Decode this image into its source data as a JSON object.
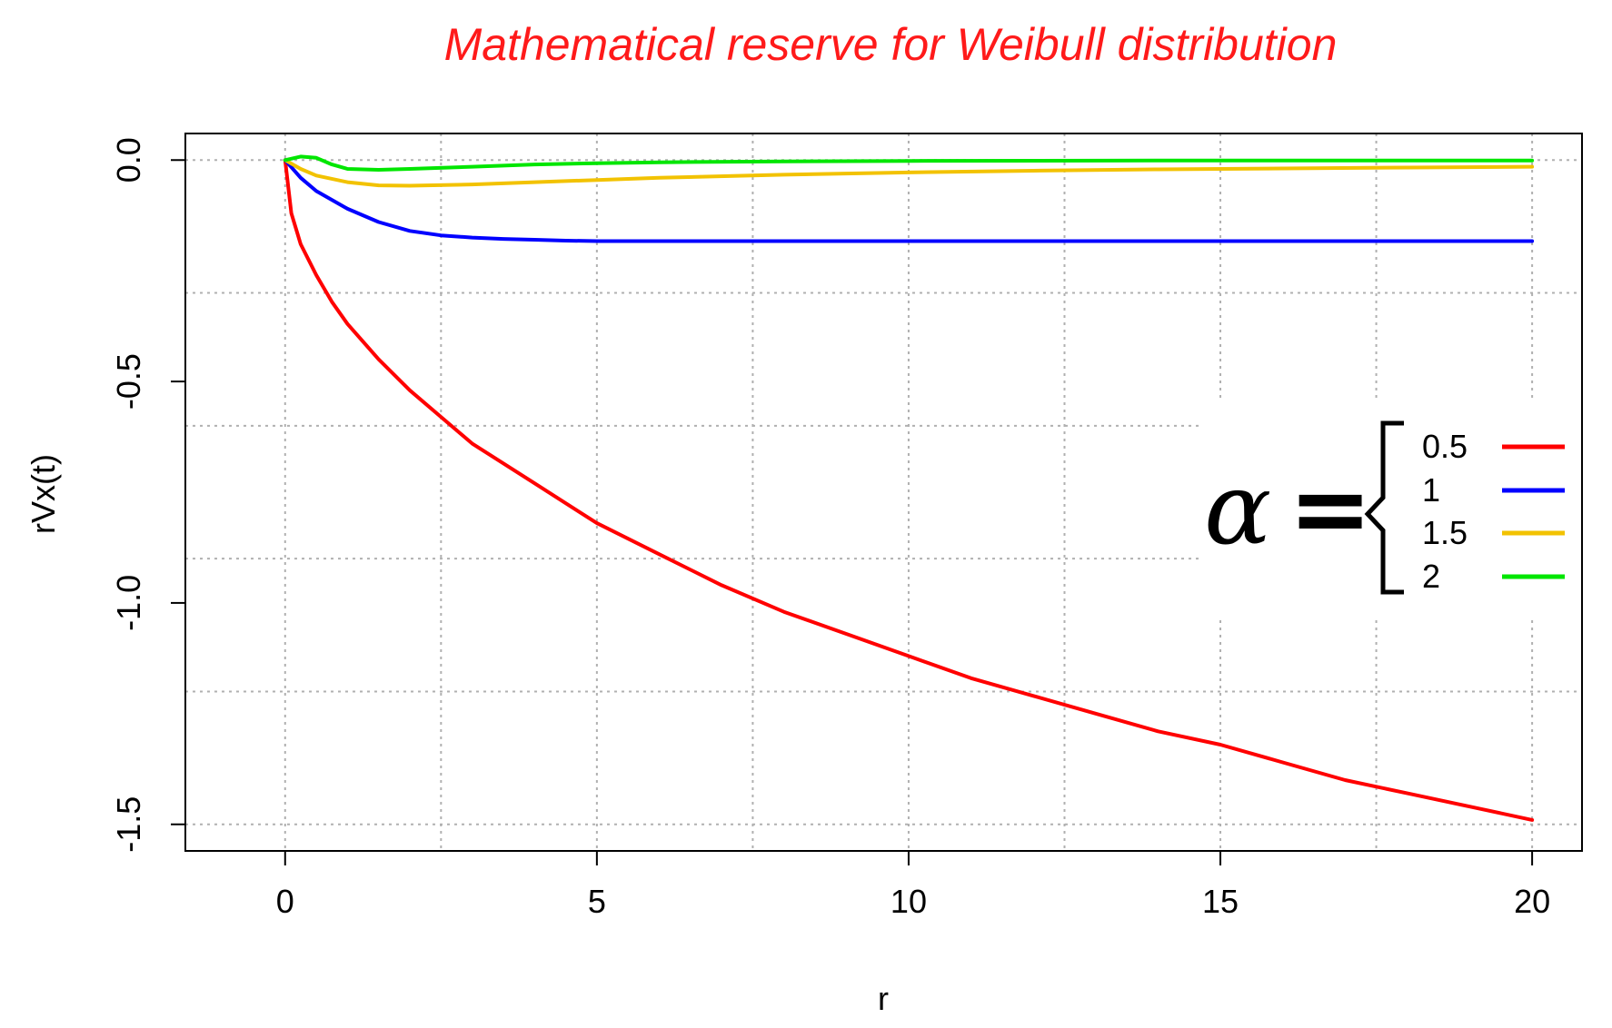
{
  "chart_data": {
    "type": "line",
    "title": "Mathematical reserve for Weibull distribution",
    "title_color": "#ff1a1a",
    "xlabel": "r",
    "ylabel": "rVx(t)",
    "xlim": [
      -1.6,
      20.8
    ],
    "ylim": [
      -1.56,
      0.06
    ],
    "x_ticks": [
      0,
      5,
      10,
      15,
      20
    ],
    "x_tick_labels": [
      "0",
      "5",
      "10",
      "15",
      "20"
    ],
    "y_ticks": [
      0.0,
      -0.5,
      -1.0,
      -1.5
    ],
    "y_tick_labels": [
      "0.0",
      "-0.5",
      "-1.0",
      "-1.5"
    ],
    "x_grid": [
      0,
      2.5,
      5,
      7.5,
      10,
      12.5,
      15,
      17.5,
      20
    ],
    "y_grid": [
      0.0,
      -0.3,
      -0.6,
      -0.9,
      -1.2,
      -1.5
    ],
    "grid": true,
    "legend": {
      "placement": "right",
      "symbol": "α",
      "equals": "="
    },
    "series": [
      {
        "name": "0.5",
        "color": "#ff0000",
        "x": [
          0,
          0.1,
          0.25,
          0.5,
          0.75,
          1,
          1.5,
          2,
          2.5,
          3,
          4,
          5,
          6,
          7,
          8,
          9,
          10,
          11,
          12,
          13,
          14,
          15,
          16,
          17,
          18,
          19,
          20
        ],
        "y": [
          0,
          -0.12,
          -0.19,
          -0.26,
          -0.32,
          -0.37,
          -0.45,
          -0.52,
          -0.58,
          -0.64,
          -0.73,
          -0.82,
          -0.89,
          -0.96,
          -1.02,
          -1.07,
          -1.12,
          -1.17,
          -1.21,
          -1.25,
          -1.29,
          -1.32,
          -1.36,
          -1.4,
          -1.43,
          -1.46,
          -1.49
        ]
      },
      {
        "name": "1",
        "color": "#0000ff",
        "x": [
          0,
          0.25,
          0.5,
          1,
          1.5,
          2,
          2.5,
          3,
          3.5,
          4,
          4.5,
          5,
          10,
          15,
          20
        ],
        "y": [
          0,
          -0.04,
          -0.07,
          -0.11,
          -0.14,
          -0.16,
          -0.17,
          -0.175,
          -0.178,
          -0.18,
          -0.182,
          -0.183,
          -0.183,
          -0.183,
          -0.183
        ]
      },
      {
        "name": "1.5",
        "color": "#f2c200",
        "x": [
          0,
          0.25,
          0.5,
          1,
          1.5,
          2,
          3,
          4,
          5,
          6,
          8,
          10,
          12,
          14,
          16,
          18,
          20
        ],
        "y": [
          0,
          -0.02,
          -0.035,
          -0.05,
          -0.057,
          -0.058,
          -0.055,
          -0.05,
          -0.045,
          -0.04,
          -0.033,
          -0.028,
          -0.024,
          -0.021,
          -0.019,
          -0.017,
          -0.015
        ]
      },
      {
        "name": "2",
        "color": "#00e600",
        "x": [
          0,
          0.25,
          0.5,
          0.75,
          1,
          1.5,
          2,
          3,
          4,
          5,
          6,
          8,
          10,
          15,
          20
        ],
        "y": [
          0,
          0.008,
          0.005,
          -0.01,
          -0.02,
          -0.022,
          -0.02,
          -0.015,
          -0.01,
          -0.007,
          -0.005,
          -0.003,
          -0.002,
          -0.001,
          -0.001
        ]
      }
    ]
  }
}
